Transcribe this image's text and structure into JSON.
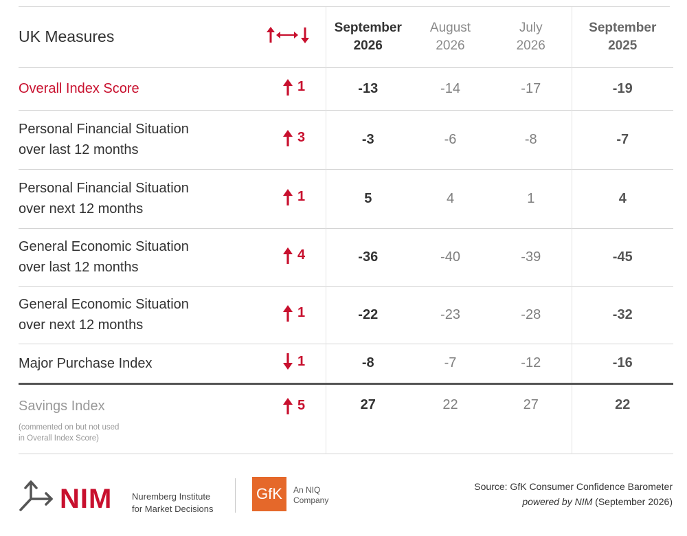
{
  "table": {
    "title": "UK Measures",
    "columns": [
      {
        "line1": "September",
        "line2": "2026"
      },
      {
        "line1": "August",
        "line2": "2026"
      },
      {
        "line1": "July",
        "line2": "2026"
      },
      {
        "line1": "September",
        "line2": "2025"
      }
    ],
    "rows": [
      {
        "line1": "Overall Index Score",
        "line2": "",
        "direction": "up",
        "change": "1",
        "values": [
          "-13",
          "-14",
          "-17",
          "-19"
        ]
      },
      {
        "line1": "Personal Financial Situation",
        "line2": "over last 12 months",
        "direction": "up",
        "change": "3",
        "values": [
          "-3",
          "-6",
          "-8",
          "-7"
        ]
      },
      {
        "line1": "Personal Financial Situation",
        "line2": "over next 12 months",
        "direction": "up",
        "change": "1",
        "values": [
          "5",
          "4",
          "1",
          "4"
        ]
      },
      {
        "line1": "General Economic Situation",
        "line2": "over last 12 months",
        "direction": "up",
        "change": "4",
        "values": [
          "-36",
          "-40",
          "-39",
          "-45"
        ]
      },
      {
        "line1": "General Economic Situation",
        "line2": "over next 12 months",
        "direction": "up",
        "change": "1",
        "values": [
          "-22",
          "-23",
          "-28",
          "-32"
        ]
      },
      {
        "line1": "Major Purchase Index",
        "line2": "",
        "direction": "down",
        "change": "1",
        "values": [
          "-8",
          "-7",
          "-12",
          "-16"
        ]
      },
      {
        "line1": "Savings Index",
        "line2": "",
        "direction": "up",
        "change": "5",
        "values": [
          "27",
          "22",
          "27",
          "22"
        ],
        "note_line1": "(commented on but not used",
        "note_line2": "in Overall Index Score)"
      }
    ]
  },
  "footer": {
    "nim_name": "NIM",
    "nim_sub_line1": "Nuremberg Institute",
    "nim_sub_line2": "for Market Decisions",
    "gfk_name": "GfK",
    "gfk_sub_line1": "An NIQ",
    "gfk_sub_line2": "Company",
    "source_line1": "Source: GfK Consumer Confidence Barometer",
    "source_powered": "powered by NIM",
    "source_date": " (September 2026)"
  },
  "colors": {
    "accent_red": "#c8102e",
    "gfk_orange": "#e5682a",
    "rule_dark": "#555555"
  },
  "icons": {
    "header_arrows": "up-left-right-down-arrows-icon",
    "up": "red-up-arrow-icon",
    "down": "red-down-arrow-icon"
  }
}
